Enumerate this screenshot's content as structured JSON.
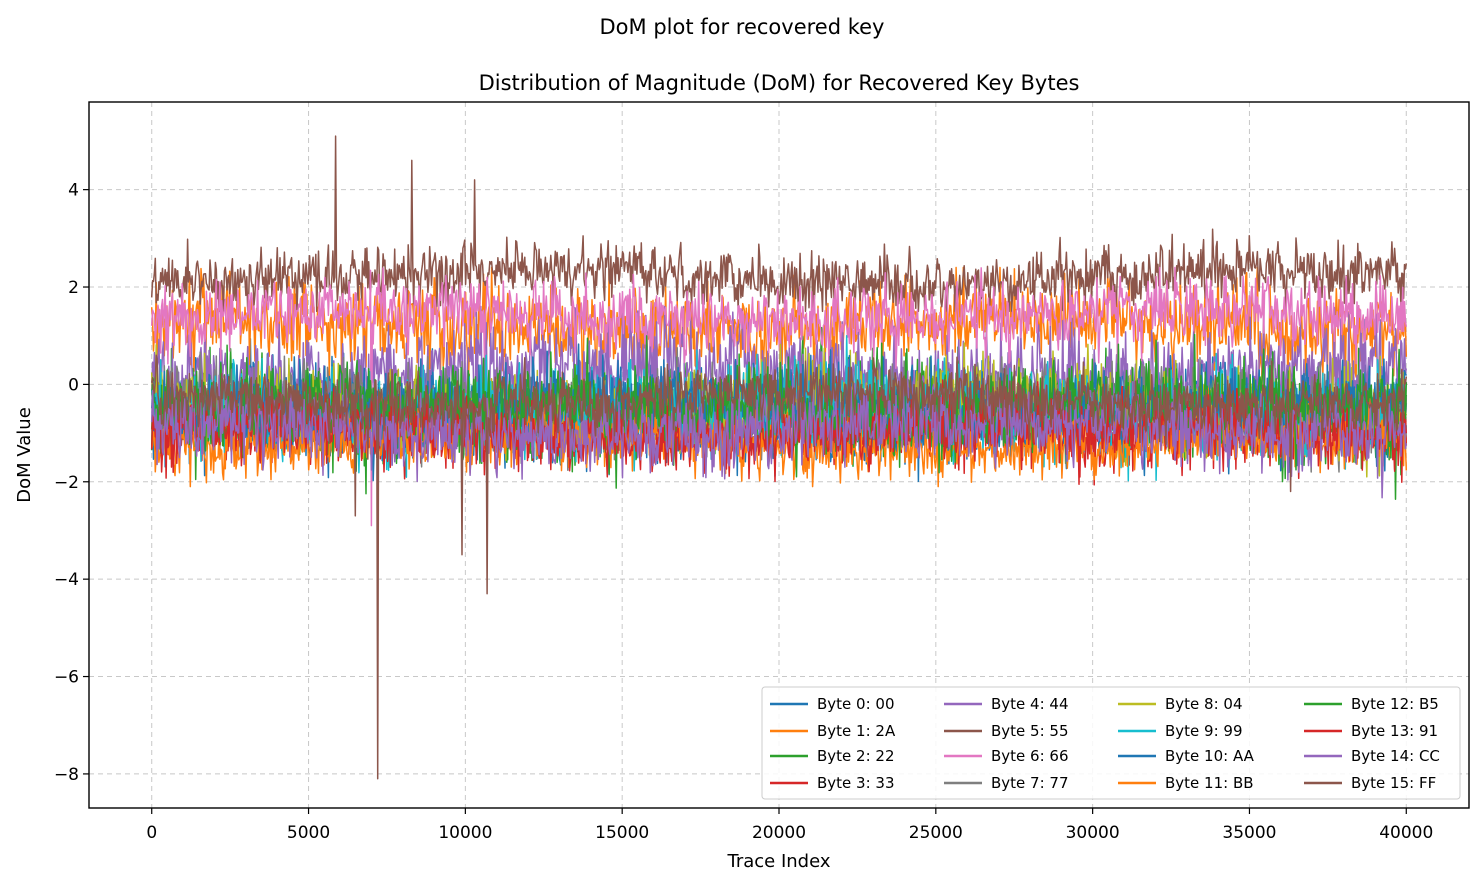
{
  "figure": {
    "suptitle": "DoM plot for recovered key"
  },
  "chart_data": {
    "type": "line",
    "title": "Distribution of Magnitude (DoM) for Recovered Key Bytes",
    "xlabel": "Trace Index",
    "ylabel": "DoM Value",
    "xlim": [
      -2000,
      42000
    ],
    "ylim": [
      -8.7,
      5.8
    ],
    "xticks": [
      0,
      5000,
      10000,
      15000,
      20000,
      25000,
      30000,
      35000,
      40000
    ],
    "xtick_labels": [
      "0",
      "5000",
      "10000",
      "15000",
      "20000",
      "25000",
      "30000",
      "35000",
      "40000"
    ],
    "yticks": [
      -8,
      -6,
      -4,
      -2,
      0,
      2,
      4
    ],
    "ytick_labels": [
      "−8",
      "−6",
      "−4",
      "−2",
      "0",
      "2",
      "4"
    ],
    "grid": true,
    "legend_position": "bottom-right",
    "legend_columns": 4,
    "series": [
      {
        "name": "Byte 0: 00",
        "color": "#1f77b4",
        "center": -0.6,
        "spread": 0.45,
        "min": -2.3,
        "max": 1.0
      },
      {
        "name": "Byte 1: 2A",
        "color": "#ff7f0e",
        "center": 1.2,
        "spread": 0.45,
        "min": -0.2,
        "max": 2.4
      },
      {
        "name": "Byte 2: 22",
        "color": "#2ca02c",
        "center": -0.5,
        "spread": 0.5,
        "min": -2.6,
        "max": 2.2
      },
      {
        "name": "Byte 3: 33",
        "color": "#d62728",
        "center": -0.9,
        "spread": 0.35,
        "min": -2.3,
        "max": 0.3
      },
      {
        "name": "Byte 4: 44",
        "color": "#9467bd",
        "center": 0.2,
        "spread": 0.5,
        "min": -1.5,
        "max": 1.6
      },
      {
        "name": "Byte 5: 55",
        "color": "#8c564b",
        "center": 2.2,
        "spread": 0.3,
        "min": 1.5,
        "max": 5.1
      },
      {
        "name": "Byte 6: 66",
        "color": "#e377c2",
        "center": 1.4,
        "spread": 0.35,
        "min": -2.9,
        "max": 2.4
      },
      {
        "name": "Byte 7: 77",
        "color": "#7f7f7f",
        "center": -0.5,
        "spread": 0.4,
        "min": -1.8,
        "max": 1.0
      },
      {
        "name": "Byte 8: 04",
        "color": "#bcbd22",
        "center": -0.5,
        "spread": 0.45,
        "min": -1.9,
        "max": 2.2
      },
      {
        "name": "Byte 9: 99",
        "color": "#17becf",
        "center": -0.5,
        "spread": 0.45,
        "min": -2.1,
        "max": 1.0
      },
      {
        "name": "Byte 10: AA",
        "color": "#1f77b4",
        "center": -0.5,
        "spread": 0.45,
        "min": -2.3,
        "max": 1.0
      },
      {
        "name": "Byte 11: BB",
        "color": "#ff7f0e",
        "center": -1.2,
        "spread": 0.3,
        "min": -2.1,
        "max": 0.0
      },
      {
        "name": "Byte 12: B5",
        "color": "#2ca02c",
        "center": -0.5,
        "spread": 0.45,
        "min": -2.1,
        "max": 1.6
      },
      {
        "name": "Byte 13: 91",
        "color": "#d62728",
        "center": -1.0,
        "spread": 0.35,
        "min": -2.3,
        "max": 1.8
      },
      {
        "name": "Byte 14: CC",
        "color": "#9467bd",
        "center": -0.9,
        "spread": 0.4,
        "min": -2.4,
        "max": 1.6
      },
      {
        "name": "Byte 15: FF",
        "color": "#8c564b",
        "center": -0.3,
        "spread": 0.3,
        "min": -8.1,
        "max": 0.6
      }
    ],
    "x_range": [
      0,
      40000
    ],
    "notable_spikes": [
      {
        "series": "Byte 5: 55",
        "x": 5850,
        "y": 5.1
      },
      {
        "series": "Byte 5: 55",
        "x": 8300,
        "y": 4.6
      },
      {
        "series": "Byte 5: 55",
        "x": 10300,
        "y": 4.2
      },
      {
        "series": "Byte 15: FF",
        "x": 7200,
        "y": -8.1
      },
      {
        "series": "Byte 15: FF",
        "x": 9900,
        "y": -3.5
      },
      {
        "series": "Byte 15: FF",
        "x": 10700,
        "y": -4.3
      },
      {
        "series": "Byte 15: FF",
        "x": 6500,
        "y": -2.7
      },
      {
        "series": "Byte 15: FF",
        "x": 36300,
        "y": -2.2
      },
      {
        "series": "Byte 6: 66",
        "x": 7000,
        "y": -2.9
      }
    ]
  }
}
